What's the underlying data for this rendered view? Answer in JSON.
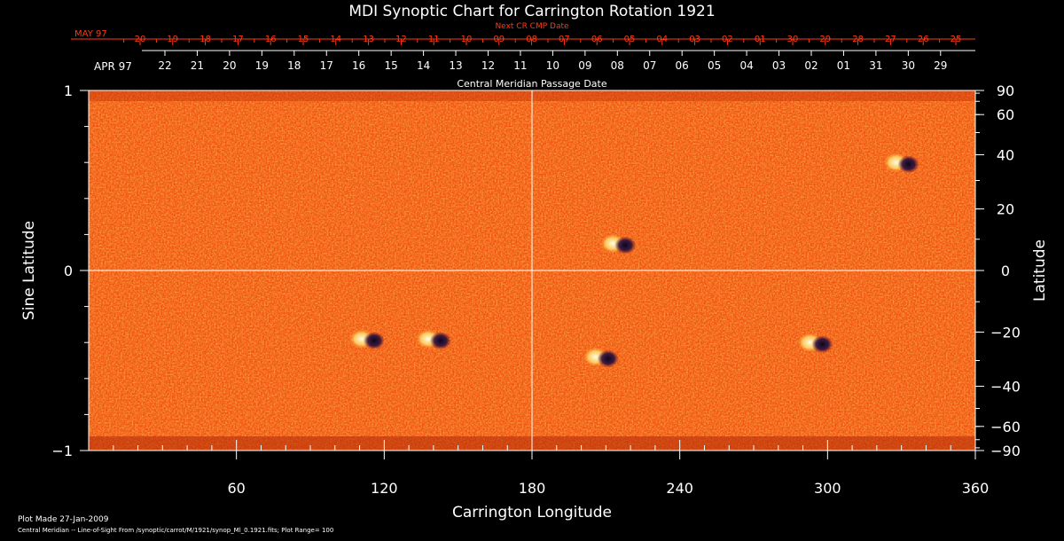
{
  "chart_data": {
    "type": "heatmap",
    "title": "MDI Synoptic Chart for Carrington Rotation 1921",
    "xlabel": "Carrington Longitude",
    "ylabel_left": "Sine Latitude",
    "ylabel_right": "Latitude",
    "xlim": [
      0,
      360
    ],
    "ylim": [
      -1,
      1
    ],
    "x_ticks": [
      60,
      120,
      180,
      240,
      300,
      360
    ],
    "y_ticks_left": [
      1,
      0,
      -1
    ],
    "y_tick_labels_left": [
      "1",
      "0",
      "−1"
    ],
    "y_ticks_right": [
      90,
      60,
      40,
      20,
      0,
      -20,
      -40,
      -60,
      -90
    ],
    "y_tick_labels_right": [
      "90",
      "60",
      "40",
      "20",
      "0",
      "−20",
      "−40",
      "−60",
      "−90"
    ],
    "grid": "crosshair at longitude 180 and sine latitude 0",
    "colormap": [
      "#1a0a30",
      "#7a1005",
      "#e02a00",
      "#ff5a12",
      "#ffb030",
      "#ffffd0"
    ],
    "top_axis": {
      "label": "Next CR CMP Date",
      "month_label": "MAY 97",
      "ticks": [
        "20",
        "19",
        "18",
        "17",
        "16",
        "15",
        "14",
        "13",
        "12",
        "11",
        "10",
        "09",
        "08",
        "07",
        "06",
        "05",
        "04",
        "03",
        "02",
        "01",
        "30",
        "29",
        "28",
        "27",
        "26",
        "25"
      ]
    },
    "bottom_date_axis": {
      "label": "Central Meridian Passage Date",
      "month_label": "APR 97",
      "ticks": [
        "22",
        "21",
        "20",
        "19",
        "18",
        "17",
        "16",
        "15",
        "14",
        "13",
        "12",
        "11",
        "10",
        "09",
        "08",
        "07",
        "06",
        "05",
        "04",
        "03",
        "02",
        "01",
        "31",
        "30",
        "29"
      ]
    },
    "features": [
      {
        "name": "active-region",
        "longitude": 113,
        "sine_latitude": -0.38
      },
      {
        "name": "active-region",
        "longitude": 140,
        "sine_latitude": -0.38
      },
      {
        "name": "active-region",
        "longitude": 208,
        "sine_latitude": -0.48
      },
      {
        "name": "active-region",
        "longitude": 215,
        "sine_latitude": 0.15
      },
      {
        "name": "active-region",
        "longitude": 295,
        "sine_latitude": -0.4
      },
      {
        "name": "active-region",
        "longitude": 330,
        "sine_latitude": 0.6
      }
    ]
  },
  "footer": {
    "plot_made": "Plot Made 27-Jan-2009",
    "source": "Central Meridian -- Line-of-Sight From /synoptic/carrot/M/1921/synop_Ml_0.1921.fits; Plot Range= 100"
  }
}
